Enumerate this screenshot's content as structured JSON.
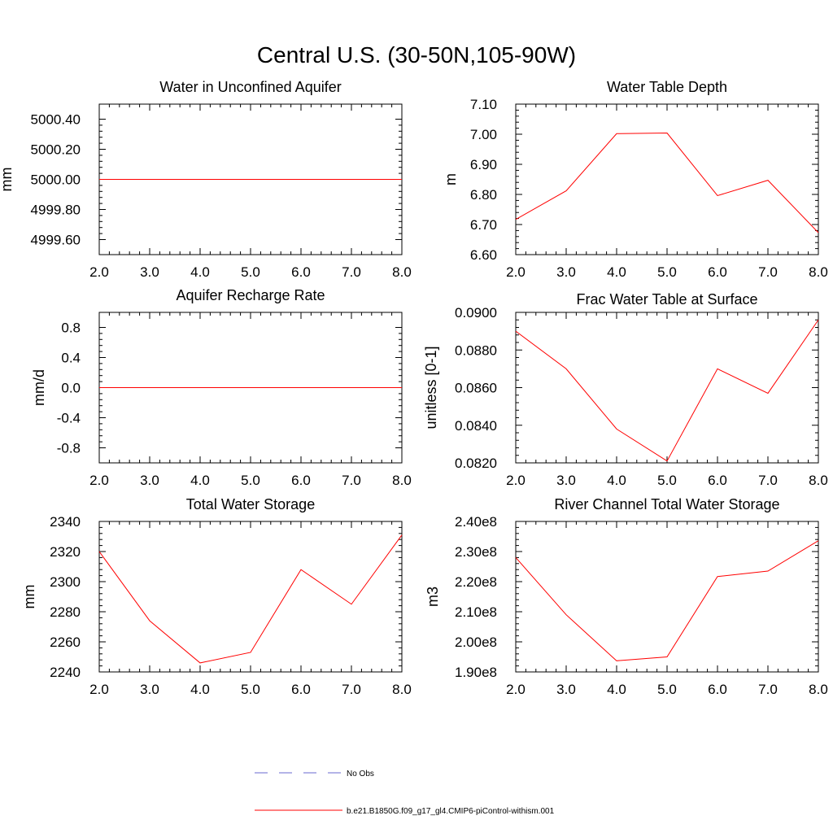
{
  "figure_title": "Central U.S. (30-50N,105-90W)",
  "chart_data": [
    {
      "type": "line",
      "title": "Water in Unconfined Aquifer",
      "ylabel": "mm",
      "xlim": [
        2.0,
        8.0
      ],
      "ylim": [
        4999.5,
        5000.5
      ],
      "x_ticks": [
        2.0,
        3.0,
        4.0,
        5.0,
        6.0,
        7.0,
        8.0
      ],
      "x_tick_labels": [
        "2.0",
        "3.0",
        "4.0",
        "5.0",
        "6.0",
        "7.0",
        "8.0"
      ],
      "y_ticks": [
        4999.6,
        4999.8,
        5000.0,
        5000.2,
        5000.4
      ],
      "y_tick_labels": [
        "4999.60",
        "4999.80",
        "5000.00",
        "5000.20",
        "5000.40"
      ],
      "series": [
        {
          "name": "b.e21.B1850G.f09_g17_gl4.CMIP6-piControl-withism.001",
          "x": [
            2.0,
            3.0,
            4.0,
            5.0,
            6.0,
            7.0,
            8.0
          ],
          "values": [
            5000.0,
            5000.0,
            5000.0,
            5000.0,
            5000.0,
            5000.0,
            5000.0
          ]
        }
      ]
    },
    {
      "type": "line",
      "title": "Water Table Depth",
      "ylabel": "m",
      "xlim": [
        2.0,
        8.0
      ],
      "ylim": [
        6.6,
        7.1
      ],
      "x_ticks": [
        2.0,
        3.0,
        4.0,
        5.0,
        6.0,
        7.0,
        8.0
      ],
      "x_tick_labels": [
        "2.0",
        "3.0",
        "4.0",
        "5.0",
        "6.0",
        "7.0",
        "8.0"
      ],
      "y_ticks": [
        6.6,
        6.7,
        6.8,
        6.9,
        7.0,
        7.1
      ],
      "y_tick_labels": [
        "6.60",
        "6.70",
        "6.80",
        "6.90",
        "7.00",
        "7.10"
      ],
      "series": [
        {
          "name": "b.e21.B1850G.f09_g17_gl4.CMIP6-piControl-withism.001",
          "x": [
            2.0,
            3.0,
            4.0,
            5.0,
            6.0,
            7.0,
            8.0
          ],
          "values": [
            6.717,
            6.812,
            7.002,
            7.004,
            6.796,
            6.847,
            6.673
          ]
        }
      ]
    },
    {
      "type": "line",
      "title": "Aquifer Recharge Rate",
      "ylabel": "mm/d",
      "xlim": [
        2.0,
        8.0
      ],
      "ylim": [
        -1.0,
        1.0
      ],
      "x_ticks": [
        2.0,
        3.0,
        4.0,
        5.0,
        6.0,
        7.0,
        8.0
      ],
      "x_tick_labels": [
        "2.0",
        "3.0",
        "4.0",
        "5.0",
        "6.0",
        "7.0",
        "8.0"
      ],
      "y_ticks": [
        -0.8,
        -0.4,
        0.0,
        0.4,
        0.8
      ],
      "y_tick_labels": [
        "-0.8",
        "-0.4",
        "0.0",
        "0.4",
        "0.8"
      ],
      "series": [
        {
          "name": "b.e21.B1850G.f09_g17_gl4.CMIP6-piControl-withism.001",
          "x": [
            2.0,
            3.0,
            4.0,
            5.0,
            6.0,
            7.0,
            8.0
          ],
          "values": [
            0.0,
            0.0,
            0.0,
            0.0,
            0.0,
            0.0,
            0.0
          ]
        }
      ]
    },
    {
      "type": "line",
      "title": "Frac Water Table at Surface",
      "ylabel": "unitless [0-1]",
      "xlim": [
        2.0,
        8.0
      ],
      "ylim": [
        0.082,
        0.09
      ],
      "x_ticks": [
        2.0,
        3.0,
        4.0,
        5.0,
        6.0,
        7.0,
        8.0
      ],
      "x_tick_labels": [
        "2.0",
        "3.0",
        "4.0",
        "5.0",
        "6.0",
        "7.0",
        "8.0"
      ],
      "y_ticks": [
        0.082,
        0.084,
        0.086,
        0.088,
        0.09
      ],
      "y_tick_labels": [
        "0.0820",
        "0.0840",
        "0.0860",
        "0.0880",
        "0.0900"
      ],
      "series": [
        {
          "name": "b.e21.B1850G.f09_g17_gl4.CMIP6-piControl-withism.001",
          "x": [
            2.0,
            3.0,
            4.0,
            5.0,
            6.0,
            7.0,
            8.0
          ],
          "values": [
            0.089,
            0.087,
            0.0838,
            0.0821,
            0.087,
            0.0857,
            0.0896
          ]
        }
      ]
    },
    {
      "type": "line",
      "title": "Total Water Storage",
      "ylabel": "mm",
      "xlim": [
        2.0,
        8.0
      ],
      "ylim": [
        2240,
        2340
      ],
      "x_ticks": [
        2.0,
        3.0,
        4.0,
        5.0,
        6.0,
        7.0,
        8.0
      ],
      "x_tick_labels": [
        "2.0",
        "3.0",
        "4.0",
        "5.0",
        "6.0",
        "7.0",
        "8.0"
      ],
      "y_ticks": [
        2240,
        2260,
        2280,
        2300,
        2320,
        2340
      ],
      "y_tick_labels": [
        "2240",
        "2260",
        "2280",
        "2300",
        "2320",
        "2340"
      ],
      "series": [
        {
          "name": "b.e21.B1850G.f09_g17_gl4.CMIP6-piControl-withism.001",
          "x": [
            2.0,
            3.0,
            4.0,
            5.0,
            6.0,
            7.0,
            8.0
          ],
          "values": [
            2320,
            2274,
            2246,
            2253,
            2308,
            2285,
            2331
          ]
        }
      ]
    },
    {
      "type": "line",
      "title": "River Channel Total Water Storage",
      "ylabel": "m3",
      "xlim": [
        2.0,
        8.0
      ],
      "ylim": [
        190000000,
        240000000
      ],
      "x_ticks": [
        2.0,
        3.0,
        4.0,
        5.0,
        6.0,
        7.0,
        8.0
      ],
      "x_tick_labels": [
        "2.0",
        "3.0",
        "4.0",
        "5.0",
        "6.0",
        "7.0",
        "8.0"
      ],
      "y_ticks": [
        190000000,
        200000000,
        210000000,
        220000000,
        230000000,
        240000000
      ],
      "y_tick_labels": [
        "1.90e8",
        "2.00e8",
        "2.10e8",
        "2.20e8",
        "2.30e8",
        "2.40e8"
      ],
      "series": [
        {
          "name": "b.e21.B1850G.f09_g17_gl4.CMIP6-piControl-withism.001",
          "x": [
            2.0,
            3.0,
            4.0,
            5.0,
            6.0,
            7.0,
            8.0
          ],
          "values": [
            228000000,
            209000000,
            193700000,
            195000000,
            221700000,
            223500000,
            233600000
          ]
        }
      ]
    }
  ],
  "legend": [
    {
      "label": "No Obs",
      "color": "#6a6ad0",
      "style": "dashed"
    },
    {
      "label": "b.e21.B1850G.f09_g17_gl4.CMIP6-piControl-withism.001",
      "color": "#ff0000",
      "style": "solid"
    }
  ]
}
